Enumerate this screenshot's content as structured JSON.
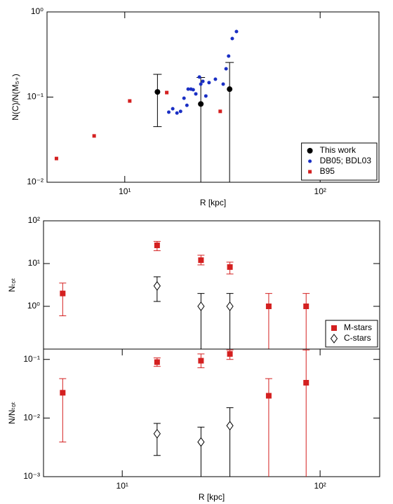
{
  "chart_data": [
    {
      "type": "scatter",
      "x_label": "R [kpc]",
      "y_label": "N(C)/N(M₅₊)",
      "xscale": "log",
      "yscale": "log",
      "xlim": [
        4,
        200
      ],
      "ylim": [
        0.01,
        1
      ],
      "xticks": [
        {
          "value": 10,
          "label": "10¹"
        },
        {
          "value": 100,
          "label": "10²"
        }
      ],
      "yticks": [
        {
          "value": 0.01,
          "label": "10⁻²"
        },
        {
          "value": 0.1,
          "label": "10⁻¹"
        },
        {
          "value": 1,
          "label": "10⁰"
        }
      ],
      "legend": "lower right",
      "series": [
        {
          "name": "This work",
          "color": "#000000",
          "marker": "circle",
          "x": [
            14.7,
            24.5,
            34.4
          ],
          "values": [
            0.115,
            0.083,
            0.124
          ],
          "lower": [
            0.045,
            0.01,
            0.01
          ],
          "upper": [
            0.185,
            0.17,
            0.255
          ]
        },
        {
          "name": "DB05; BDL03",
          "color": "#1a2fc4",
          "marker": "dot",
          "x": [
            16.8,
            17.6,
            18.5,
            19.3,
            20.1,
            20.8,
            21.1,
            21.8,
            22.4,
            23.1,
            24.1,
            24.5,
            25.1,
            26.0,
            27.0,
            29.1,
            31.9,
            33.0,
            34.0,
            35.5,
            37.3
          ],
          "values": [
            0.0665,
            0.073,
            0.065,
            0.068,
            0.097,
            0.08,
            0.124,
            0.124,
            0.122,
            0.109,
            0.172,
            0.142,
            0.153,
            0.103,
            0.148,
            0.162,
            0.142,
            0.215,
            0.303,
            0.487,
            0.588
          ]
        },
        {
          "name": "B95",
          "color": "#d42020",
          "marker": "small-square",
          "x": [
            4.47,
            6.97,
            10.6,
            16.4,
            30.8
          ],
          "values": [
            0.019,
            0.035,
            0.09,
            0.113,
            0.068
          ]
        }
      ]
    },
    {
      "type": "scatter",
      "y_label": "Nₜₒₜ",
      "xscale": "log",
      "yscale": "log",
      "xlim": [
        4,
        200
      ],
      "ylim": [
        0.1,
        100
      ],
      "yticks": [
        {
          "value": 1,
          "label": "10⁰"
        },
        {
          "value": 10,
          "label": "10¹"
        },
        {
          "value": 100,
          "label": "10²"
        }
      ],
      "legend": "lower right",
      "series": [
        {
          "name": "M-stars",
          "color": "#d42020",
          "marker": "square",
          "x": [
            5,
            15,
            25,
            35,
            55,
            85
          ],
          "values": [
            2.0,
            26.7,
            12,
            8.3,
            1.0,
            1.0
          ],
          "lower": [
            0.6,
            20,
            9.3,
            5.7,
            0.1,
            0.1
          ],
          "upper": [
            3.5,
            33,
            15.7,
            10.8,
            2.0,
            2.0
          ]
        },
        {
          "name": "C-stars",
          "color": "#000000",
          "marker": "open-diamond",
          "x": [
            15,
            25,
            35
          ],
          "values": [
            3.0,
            1.0,
            1.0
          ],
          "lower": [
            1.3,
            0.1,
            0.1
          ],
          "upper": [
            4.9,
            2.0,
            2.0
          ]
        }
      ]
    },
    {
      "type": "scatter",
      "x_label": "R [kpc]",
      "y_label": "N/Nₜₒₜ",
      "xscale": "log",
      "yscale": "log",
      "xlim": [
        4,
        200
      ],
      "ylim": [
        0.001,
        0.15
      ],
      "xticks": [
        {
          "value": 10,
          "label": "10¹"
        },
        {
          "value": 100,
          "label": "10²"
        }
      ],
      "yticks": [
        {
          "value": 0.001,
          "label": "10⁻³"
        },
        {
          "value": 0.01,
          "label": "10⁻²"
        },
        {
          "value": 0.1,
          "label": "10⁻¹"
        }
      ],
      "series": [
        {
          "name": "M-stars",
          "color": "#d42020",
          "marker": "square",
          "x": [
            5,
            15,
            25,
            35,
            55,
            85
          ],
          "values": [
            0.027,
            0.09,
            0.095,
            0.124,
            0.024,
            0.04
          ],
          "lower": [
            0.0039,
            0.076,
            0.072,
            0.1,
            0.001,
            0.001
          ],
          "upper": [
            0.047,
            0.106,
            0.124,
            0.145,
            0.047,
            0.145
          ]
        },
        {
          "name": "C-stars",
          "color": "#000000",
          "marker": "open-diamond",
          "x": [
            15,
            25,
            35
          ],
          "values": [
            0.0054,
            0.0039,
            0.0074
          ],
          "lower": [
            0.0023,
            0.001,
            0.001
          ],
          "upper": [
            0.0081,
            0.007,
            0.015
          ]
        }
      ]
    }
  ]
}
